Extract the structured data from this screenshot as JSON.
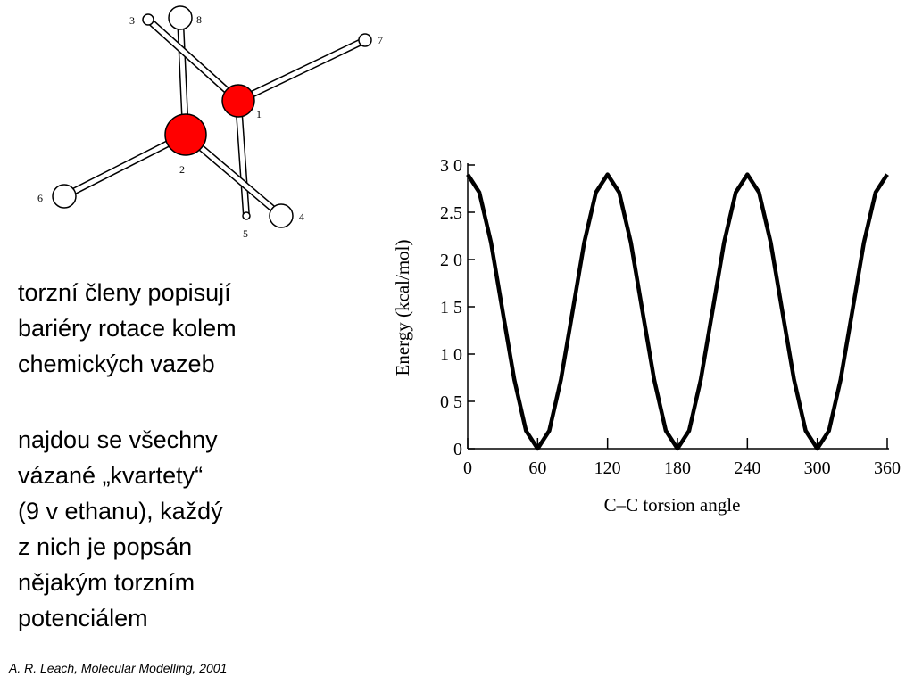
{
  "molecule": {
    "atoms": [
      "1",
      "2",
      "3",
      "4",
      "5",
      "6",
      "7",
      "8"
    ]
  },
  "text": {
    "paragraph1": [
      "torzní členy popisují",
      "bariéry rotace kolem",
      "chemických vazeb"
    ],
    "paragraph2": [
      "najdou se všechny",
      "vázané „kvartety“",
      "(9 v ethanu), každý",
      "z nich je popsán",
      "nějakým torzním",
      "potenciálem"
    ]
  },
  "citation": "A. R. Leach, Molecular Modelling, 2001",
  "chart_data": {
    "type": "line",
    "x_label": "C–C torsion angle",
    "y_label": "Energy (kcal/mol)",
    "x": [
      0,
      10,
      20,
      30,
      40,
      50,
      60,
      70,
      80,
      90,
      100,
      110,
      120,
      130,
      140,
      150,
      160,
      170,
      180,
      190,
      200,
      210,
      220,
      230,
      240,
      250,
      260,
      270,
      280,
      290,
      300,
      310,
      320,
      330,
      340,
      350,
      360
    ],
    "series": [
      {
        "color": "#000000",
        "values": [
          2.9,
          2.71,
          2.18,
          1.45,
          0.73,
          0.19,
          0,
          0.19,
          0.73,
          1.45,
          2.18,
          2.71,
          2.9,
          2.71,
          2.18,
          1.45,
          0.73,
          0.19,
          0,
          0.19,
          0.73,
          1.45,
          2.18,
          2.71,
          2.9,
          2.71,
          2.18,
          1.45,
          0.73,
          0.19,
          0,
          0.19,
          0.73,
          1.45,
          2.18,
          2.71,
          2.9
        ]
      }
    ],
    "xlim": [
      0,
      360
    ],
    "ylim": [
      0,
      3
    ],
    "xticks": [
      0,
      60,
      120,
      180,
      240,
      300,
      360
    ],
    "yticks": [
      {
        "value": 3,
        "label": "3 0"
      },
      2.5,
      {
        "value": 2,
        "label": "2 0"
      },
      {
        "value": 1.5,
        "label": "1 5"
      },
      {
        "value": 1,
        "label": "1 0"
      },
      {
        "value": 0.5,
        "label": "0 5"
      },
      0
    ]
  }
}
